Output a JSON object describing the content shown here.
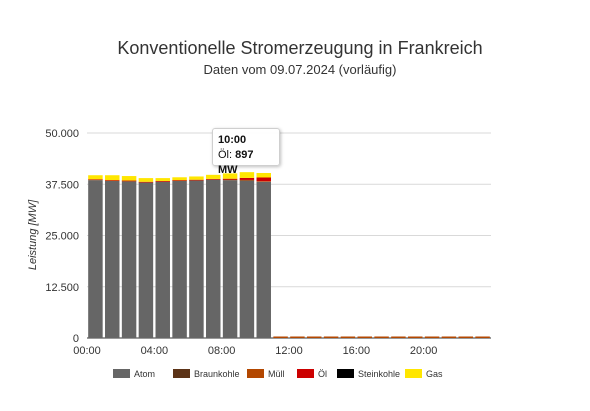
{
  "chart_data": {
    "type": "bar",
    "stacked": true,
    "title": "Konventionelle Stromerzeugung in Frankreich",
    "subtitle": "Daten vom 09.07.2024 (vorläufig)",
    "xlabel": "",
    "ylabel": "Leistung [MW]",
    "ylim": [
      0,
      50000
    ],
    "y_ticks": [
      "0",
      "12.500",
      "25.000",
      "37.500",
      "50.000"
    ],
    "y_tick_values": [
      0,
      12500,
      25000,
      37500,
      50000
    ],
    "x_ticks": [
      "00:00",
      "04:00",
      "08:00",
      "12:00",
      "16:00",
      "20:00"
    ],
    "x_tick_hours": [
      0,
      4,
      8,
      12,
      16,
      20
    ],
    "hours_total": 24,
    "categories": [
      "00:00",
      "01:00",
      "02:00",
      "03:00",
      "04:00",
      "05:00",
      "06:00",
      "07:00",
      "08:00",
      "09:00",
      "10:00",
      "11:00",
      "12:00",
      "13:00",
      "14:00",
      "15:00",
      "16:00",
      "17:00",
      "18:00",
      "19:00",
      "20:00",
      "21:00",
      "22:00",
      "23:00"
    ],
    "grid": true,
    "legend_position": "bottom",
    "series": [
      {
        "name": "Atom",
        "color": "#666666",
        "values": [
          38500,
          38300,
          38200,
          37900,
          38100,
          38300,
          38400,
          38600,
          38500,
          38400,
          38100,
          0,
          0,
          0,
          0,
          0,
          0,
          0,
          0,
          0,
          0,
          0,
          0,
          0
        ]
      },
      {
        "name": "Braunkohle",
        "color": "#5c3317",
        "values": [
          0,
          0,
          0,
          0,
          0,
          0,
          0,
          0,
          0,
          0,
          0,
          0,
          0,
          0,
          0,
          0,
          0,
          0,
          0,
          0,
          0,
          0,
          0,
          0
        ]
      },
      {
        "name": "Müll",
        "color": "#b34700",
        "values": [
          150,
          150,
          150,
          150,
          150,
          150,
          150,
          150,
          150,
          150,
          150,
          0,
          0,
          0,
          0,
          0,
          0,
          0,
          0,
          0,
          0,
          0,
          0,
          0
        ]
      },
      {
        "name": "Öl",
        "color": "#cc0000",
        "values": [
          50,
          50,
          50,
          50,
          50,
          50,
          50,
          50,
          200,
          500,
          897,
          0,
          0,
          0,
          0,
          0,
          0,
          0,
          0,
          0,
          0,
          0,
          0,
          0
        ]
      },
      {
        "name": "Steinkohle",
        "color": "#000000",
        "values": [
          0,
          0,
          0,
          0,
          0,
          0,
          0,
          0,
          0,
          0,
          0,
          0,
          0,
          0,
          0,
          0,
          0,
          0,
          0,
          0,
          0,
          0,
          0,
          0
        ]
      },
      {
        "name": "Gas",
        "color": "#ffe600",
        "values": [
          1000,
          1200,
          1100,
          900,
          700,
          700,
          800,
          1000,
          1300,
          1400,
          1100,
          0,
          0,
          0,
          0,
          0,
          0,
          0,
          0,
          0,
          0,
          0,
          0,
          0
        ]
      }
    ],
    "tooltip": {
      "time": "10:00",
      "series": "Öl",
      "value": "897 MW"
    }
  }
}
